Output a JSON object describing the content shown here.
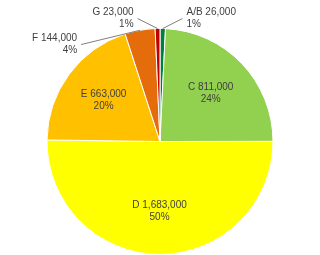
{
  "chart_data": {
    "type": "pie",
    "categories": [
      "A/B",
      "C",
      "D",
      "E",
      "F",
      "G"
    ],
    "values": [
      26000,
      811000,
      1683000,
      663000,
      144000,
      23000
    ],
    "value_labels": [
      "26,000",
      "811,000",
      "1,683,000",
      "663,000",
      "144,000",
      "23,000"
    ],
    "percent_labels": [
      "1%",
      "24%",
      "50%",
      "20%",
      "4%",
      "1%"
    ],
    "colors": [
      "#00803c",
      "#92d050",
      "#ffff00",
      "#ffc000",
      "#e46c0a",
      "#c00000"
    ],
    "data_labels": true
  }
}
